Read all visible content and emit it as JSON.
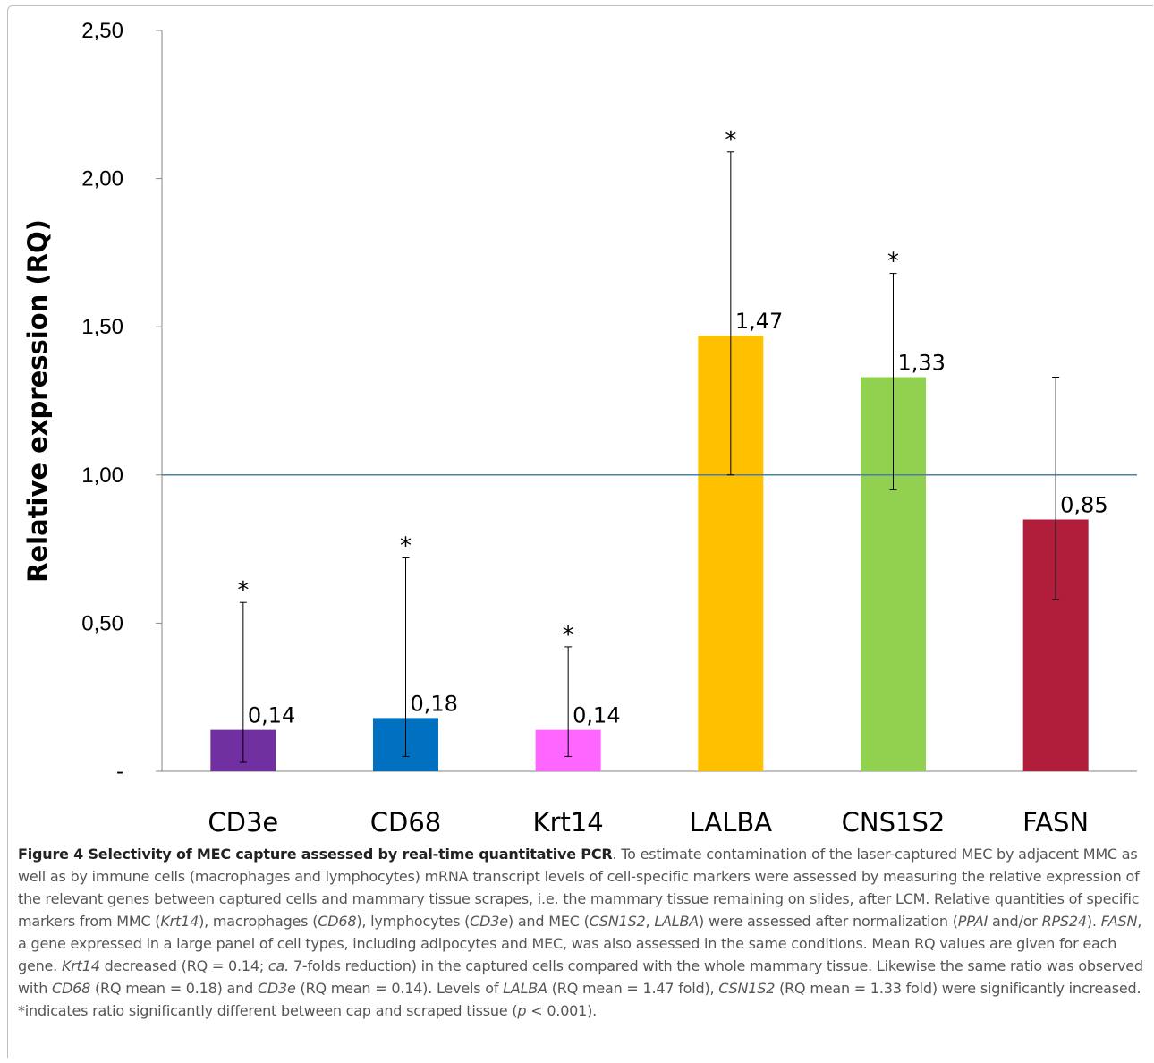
{
  "chart_data": {
    "type": "bar",
    "title": "",
    "xlabel": "",
    "ylabel": "Relative expression (RQ)",
    "ylim": [
      0,
      2.5
    ],
    "yticks": [
      {
        "value": 0,
        "label": "-"
      },
      {
        "value": 0.5,
        "label": "0,50"
      },
      {
        "value": 1.0,
        "label": "1,00"
      },
      {
        "value": 1.5,
        "label": "1,50"
      },
      {
        "value": 2.0,
        "label": "2,00"
      },
      {
        "value": 2.5,
        "label": "2,50"
      }
    ],
    "reference_line": 1.0,
    "reference_line_color": "#4f7f9f",
    "categories": [
      "CD3e",
      "CD68",
      "Krt14",
      "LALBA",
      "CNS1S2",
      "FASN"
    ],
    "values": [
      0.14,
      0.18,
      0.14,
      1.47,
      1.33,
      0.85
    ],
    "value_labels": [
      "0,14",
      "0,18",
      "0,14",
      "1,47",
      "1,33",
      "0,85"
    ],
    "error_low": [
      0.03,
      0.05,
      0.05,
      1.0,
      0.95,
      0.58
    ],
    "error_high": [
      0.57,
      0.72,
      0.42,
      2.09,
      1.68,
      1.33
    ],
    "significance": [
      "*",
      "*",
      "*",
      "*",
      "*",
      ""
    ],
    "colors": [
      "#7030a0",
      "#0070c0",
      "#ff66ff",
      "#ffc000",
      "#92d050",
      "#b01e3c"
    ],
    "grid": false,
    "legend": "none"
  },
  "caption": {
    "title": "Figure 4 Selectivity of MEC capture assessed by real-time quantitative PCR",
    "body_segments": [
      {
        "t": ". To estimate contamination of the laser-captured MEC by adjacent MMC as well as by immune cells (macrophages and lymphocytes) mRNA transcript levels of cell-specific markers were assessed by measuring the relative expression of the relevant genes between captured cells and mammary tissue scrapes, i.e. the mammary tissue remaining on slides, after LCM. Relative quantities of specific markers from MMC (",
        "i": false
      },
      {
        "t": "Krt14",
        "i": true
      },
      {
        "t": "), macrophages (",
        "i": false
      },
      {
        "t": "CD68",
        "i": true
      },
      {
        "t": "), lymphocytes (",
        "i": false
      },
      {
        "t": "CD3e",
        "i": true
      },
      {
        "t": ") and MEC (",
        "i": false
      },
      {
        "t": "CSN1S2",
        "i": true
      },
      {
        "t": ", ",
        "i": false
      },
      {
        "t": "LALBA",
        "i": true
      },
      {
        "t": ") were assessed after normalization (",
        "i": false
      },
      {
        "t": "PPAI",
        "i": true
      },
      {
        "t": " and/or ",
        "i": false
      },
      {
        "t": "RPS24",
        "i": true
      },
      {
        "t": "). ",
        "i": false
      },
      {
        "t": "FASN",
        "i": true
      },
      {
        "t": ", a gene expressed in a large panel of cell types, including adipocytes and MEC, was also assessed in the same conditions. Mean RQ values are given for each gene. ",
        "i": false
      },
      {
        "t": "Krt14",
        "i": true
      },
      {
        "t": " decreased (RQ = 0.14; ",
        "i": false
      },
      {
        "t": "ca.",
        "i": true
      },
      {
        "t": " 7-folds reduction) in the captured cells compared with the whole mammary tissue. Likewise the same ratio was observed with ",
        "i": false
      },
      {
        "t": "CD68",
        "i": true
      },
      {
        "t": " (RQ mean = 0.18) and ",
        "i": false
      },
      {
        "t": "CD3e",
        "i": true
      },
      {
        "t": " (RQ mean = 0.14). Levels of ",
        "i": false
      },
      {
        "t": "LALBA",
        "i": true
      },
      {
        "t": " (RQ mean = 1.47 fold), ",
        "i": false
      },
      {
        "t": "CSN1S2",
        "i": true
      },
      {
        "t": " (RQ mean = 1.33 fold) were significantly increased. *indicates ratio significantly different between cap and scraped tissue (",
        "i": false
      },
      {
        "t": "p",
        "i": true
      },
      {
        "t": " < 0.001).",
        "i": false
      }
    ]
  }
}
